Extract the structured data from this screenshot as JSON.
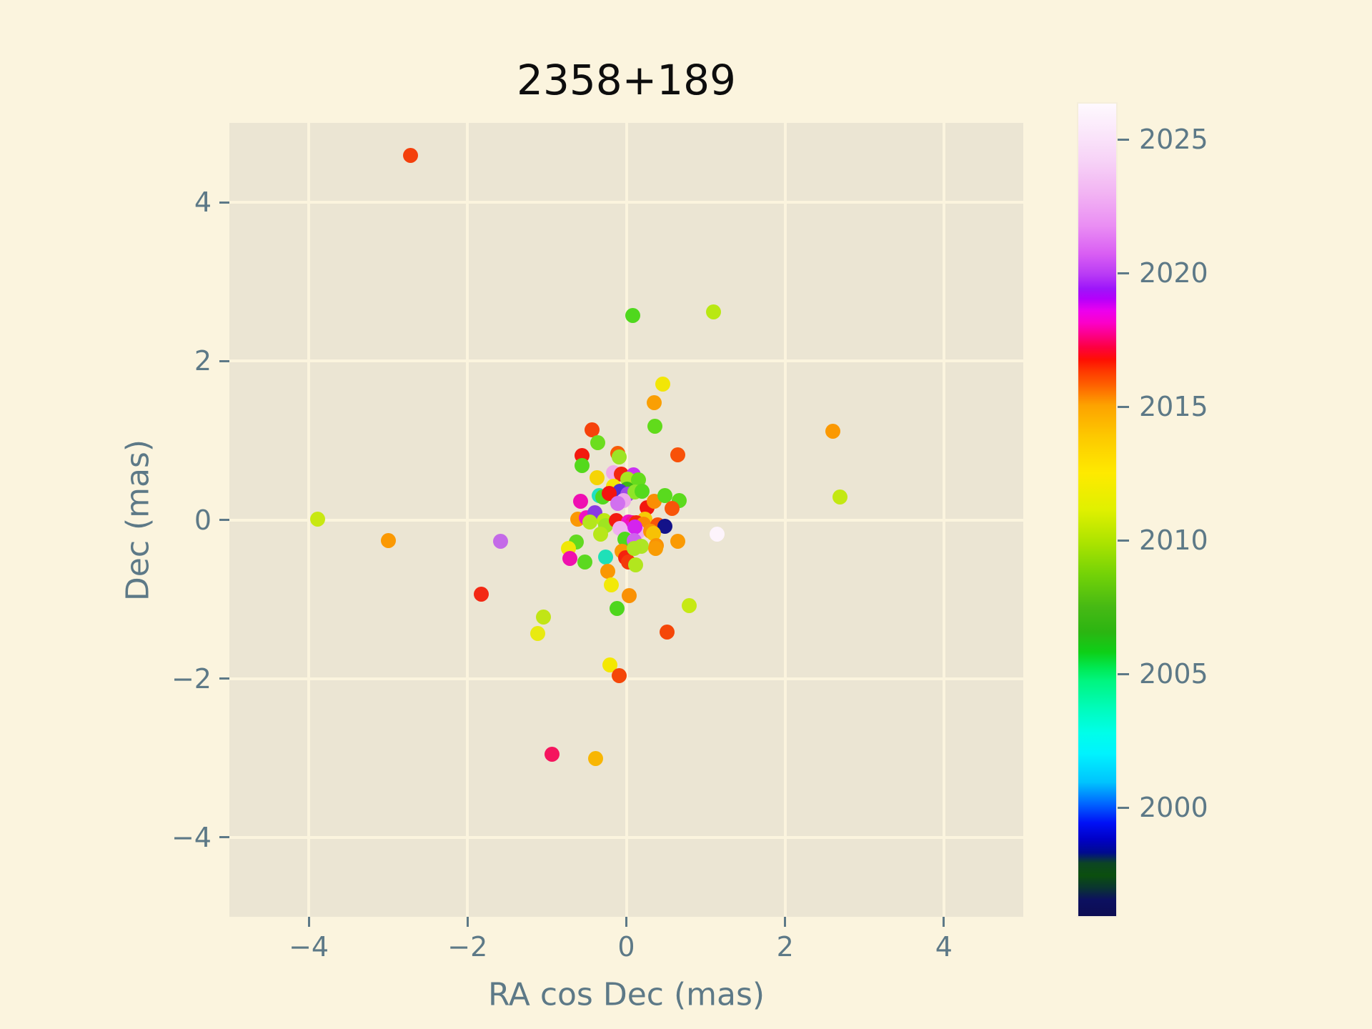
{
  "title": "2358+189",
  "x_axis": {
    "label": "RA cos Dec (mas)",
    "tick_labels": [
      "−4",
      "−2",
      "0",
      "2",
      "4"
    ],
    "tick_values": [
      -4,
      -2,
      0,
      2,
      4
    ]
  },
  "y_axis": {
    "label": "Dec (mas)",
    "tick_labels": [
      "−4",
      "−2",
      "0",
      "2",
      "4"
    ],
    "tick_values": [
      -4,
      -2,
      0,
      2,
      4
    ]
  },
  "colorbar": {
    "tick_labels": [
      "2025",
      "2020",
      "2015",
      "2010",
      "2005",
      "2000"
    ],
    "tick_values": [
      2025,
      2020,
      2015,
      2010,
      2005,
      2000
    ],
    "vmin": 1996.0,
    "vmax": 2026.4,
    "meaning": "epoch year of observation",
    "gradient_top_to_bottom": [
      [
        0.0,
        "#fef9fe"
      ],
      [
        0.03,
        "#fbeafb"
      ],
      [
        0.07,
        "#f7d3f7"
      ],
      [
        0.11,
        "#f2b4f3"
      ],
      [
        0.15,
        "#ea8ef3"
      ],
      [
        0.185,
        "#d95ef3"
      ],
      [
        0.21,
        "#b93bf5"
      ],
      [
        0.228,
        "#9d15fa"
      ],
      [
        0.24,
        "#b400fb"
      ],
      [
        0.255,
        "#ec00ee"
      ],
      [
        0.27,
        "#fb00c8"
      ],
      [
        0.285,
        "#fc0086"
      ],
      [
        0.3,
        "#fd0040"
      ],
      [
        0.315,
        "#fe0f03"
      ],
      [
        0.33,
        "#fe3a00"
      ],
      [
        0.345,
        "#fe5d00"
      ],
      [
        0.371,
        "#fda200"
      ],
      [
        0.41,
        "#fdc900"
      ],
      [
        0.455,
        "#feea00"
      ],
      [
        0.5,
        "#e0f000"
      ],
      [
        0.541,
        "#abe300"
      ],
      [
        0.58,
        "#73d207"
      ],
      [
        0.62,
        "#46b914"
      ],
      [
        0.65,
        "#2cb512"
      ],
      [
        0.675,
        "#0ecf17"
      ],
      [
        0.695,
        "#00e954"
      ],
      [
        0.71,
        "#00f57e"
      ],
      [
        0.745,
        "#00fcbc"
      ],
      [
        0.775,
        "#00feea"
      ],
      [
        0.8,
        "#00f3fe"
      ],
      [
        0.835,
        "#00c4fe"
      ],
      [
        0.862,
        "#0064ff"
      ],
      [
        0.885,
        "#0011f6"
      ],
      [
        0.905,
        "#0000c8"
      ],
      [
        0.922,
        "#000b8e"
      ],
      [
        0.935,
        "#0c4523"
      ],
      [
        0.95,
        "#0b4f0e"
      ],
      [
        0.965,
        "#0a3530"
      ],
      [
        0.98,
        "#0c1060"
      ],
      [
        1.0,
        "#0d0d52"
      ]
    ]
  },
  "colors": {
    "figure_bg": "#fbf4de",
    "plot_bg": "#ebe5d3",
    "grid": "#fbf4de",
    "tick_text": "#5d7987",
    "axis_label_text": "#5d7987",
    "title_text": "#0d0d0d",
    "tick_mark": "#5d7987",
    "colorbar_border": "#f5eedb"
  },
  "chart_data": {
    "type": "scatter",
    "title": "2358+189",
    "xlabel": "RA cos Dec (mas)",
    "ylabel": "Dec (mas)",
    "xlim": [
      -5,
      5
    ],
    "ylim": [
      -5,
      5
    ],
    "grid": true,
    "legend": "none (colorbar encodes epoch year 1996-2026, ticks 2000-2025)",
    "marker_diameter_px": 21,
    "points": [
      {
        "x": -2.72,
        "y": 4.59,
        "color": "#f4400c"
      },
      {
        "x": 0.08,
        "y": 2.57,
        "color": "#4fd81d"
      },
      {
        "x": 1.1,
        "y": 2.62,
        "color": "#b9e812"
      },
      {
        "x": 0.46,
        "y": 1.71,
        "color": "#f2e607"
      },
      {
        "x": 0.35,
        "y": 1.48,
        "color": "#fa9f03"
      },
      {
        "x": 0.36,
        "y": 1.18,
        "color": "#61db1b"
      },
      {
        "x": -0.43,
        "y": 1.13,
        "color": "#f6420b"
      },
      {
        "x": -0.36,
        "y": 0.97,
        "color": "#6cdd1e"
      },
      {
        "x": -0.56,
        "y": 0.81,
        "color": "#f3190e"
      },
      {
        "x": -0.11,
        "y": 0.84,
        "color": "#f85c07"
      },
      {
        "x": -0.09,
        "y": 0.79,
        "color": "#9ce426"
      },
      {
        "x": -0.56,
        "y": 0.68,
        "color": "#54d91c"
      },
      {
        "x": 0.65,
        "y": 0.82,
        "color": "#f85108"
      },
      {
        "x": -0.16,
        "y": 0.59,
        "color": "#f0a9ea"
      },
      {
        "x": -0.06,
        "y": 0.58,
        "color": "#f3240e"
      },
      {
        "x": 0.09,
        "y": 0.57,
        "color": "#cb32f2"
      },
      {
        "x": 0.02,
        "y": 0.51,
        "color": "#a8e522"
      },
      {
        "x": 0.15,
        "y": 0.5,
        "color": "#65dc1d"
      },
      {
        "x": -0.37,
        "y": 0.53,
        "color": "#f5d405"
      },
      {
        "x": -0.16,
        "y": 0.42,
        "color": "#f3e607"
      },
      {
        "x": 0.01,
        "y": 0.39,
        "color": "#3cb717"
      },
      {
        "x": -0.08,
        "y": 0.36,
        "color": "#4f30d2"
      },
      {
        "x": 0.02,
        "y": 0.32,
        "color": "#a04ae8"
      },
      {
        "x": 0.11,
        "y": 0.35,
        "color": "#8ee528"
      },
      {
        "x": 0.2,
        "y": 0.36,
        "color": "#56d91d"
      },
      {
        "x": -0.34,
        "y": 0.31,
        "color": "#21e0c2"
      },
      {
        "x": -0.3,
        "y": 0.29,
        "color": "#52d81e"
      },
      {
        "x": -0.22,
        "y": 0.33,
        "color": "#f3140f"
      },
      {
        "x": -0.04,
        "y": 0.24,
        "color": "#eda6ec"
      },
      {
        "x": -0.11,
        "y": 0.21,
        "color": "#d170ef"
      },
      {
        "x": 0.26,
        "y": 0.15,
        "color": "#f3170e"
      },
      {
        "x": 0.35,
        "y": 0.23,
        "color": "#fa8e04"
      },
      {
        "x": 0.49,
        "y": 0.31,
        "color": "#59da1e"
      },
      {
        "x": 0.67,
        "y": 0.24,
        "color": "#5bda1d"
      },
      {
        "x": 0.58,
        "y": 0.14,
        "color": "#f8550a"
      },
      {
        "x": -0.58,
        "y": 0.23,
        "color": "#ef0fb2"
      },
      {
        "x": 0.23,
        "y": 0.01,
        "color": "#f6ca06"
      },
      {
        "x": -0.61,
        "y": 0.01,
        "color": "#fa9804"
      },
      {
        "x": -0.5,
        "y": 0.03,
        "color": "#f014c0"
      },
      {
        "x": -0.4,
        "y": 0.09,
        "color": "#8a3ae2"
      },
      {
        "x": -0.46,
        "y": -0.03,
        "color": "#b4e61c"
      },
      {
        "x": -0.28,
        "y": -0.01,
        "color": "#bce813"
      },
      {
        "x": -0.26,
        "y": -0.07,
        "color": "#9fe521"
      },
      {
        "x": -0.13,
        "y": -0.01,
        "color": "#f31b10"
      },
      {
        "x": 0.03,
        "y": -0.03,
        "color": "#f214c9"
      },
      {
        "x": 0.08,
        "y": -0.04,
        "color": "#f3129b"
      },
      {
        "x": -0.01,
        "y": -0.1,
        "color": "#f013c4"
      },
      {
        "x": 0.13,
        "y": -0.04,
        "color": "#f4270c"
      },
      {
        "x": 0.22,
        "y": -0.05,
        "color": "#fa8a05"
      },
      {
        "x": 0.4,
        "y": -0.06,
        "color": "#f8540a"
      },
      {
        "x": 0.49,
        "y": -0.08,
        "color": "#131289"
      },
      {
        "x": 1.14,
        "y": -0.18,
        "color": "#fdf4fc"
      },
      {
        "x": -0.08,
        "y": -0.11,
        "color": "#efb0f0"
      },
      {
        "x": 0.06,
        "y": -0.16,
        "color": "#f0b3f2"
      },
      {
        "x": 0.14,
        "y": -0.15,
        "color": "#eeabef"
      },
      {
        "x": 0.11,
        "y": -0.09,
        "color": "#d423ee"
      },
      {
        "x": -0.32,
        "y": -0.18,
        "color": "#b7e71a"
      },
      {
        "x": -0.02,
        "y": -0.24,
        "color": "#50d81e"
      },
      {
        "x": 0.1,
        "y": -0.26,
        "color": "#cf63ee"
      },
      {
        "x": 0.19,
        "y": -0.33,
        "color": "#aee524"
      },
      {
        "x": 0.31,
        "y": -0.14,
        "color": "#fa9305"
      },
      {
        "x": 0.34,
        "y": -0.17,
        "color": "#f7c105"
      },
      {
        "x": 0.38,
        "y": -0.32,
        "color": "#fa9204"
      },
      {
        "x": 0.65,
        "y": -0.27,
        "color": "#fa9a03"
      },
      {
        "x": -0.63,
        "y": -0.28,
        "color": "#62da20"
      },
      {
        "x": -0.73,
        "y": -0.36,
        "color": "#f0e808"
      },
      {
        "x": -0.71,
        "y": -0.49,
        "color": "#ef11ae"
      },
      {
        "x": -0.52,
        "y": -0.53,
        "color": "#5bd91f"
      },
      {
        "x": -0.26,
        "y": -0.47,
        "color": "#1fe0b8"
      },
      {
        "x": -0.05,
        "y": -0.4,
        "color": "#fa9a04"
      },
      {
        "x": -0.01,
        "y": -0.48,
        "color": "#f5220d"
      },
      {
        "x": 0.03,
        "y": -0.53,
        "color": "#f43a0b"
      },
      {
        "x": 0.1,
        "y": -0.36,
        "color": "#ace523"
      },
      {
        "x": 0.12,
        "y": -0.57,
        "color": "#b2e61e"
      },
      {
        "x": 0.37,
        "y": -0.36,
        "color": "#f99c04"
      },
      {
        "x": -0.23,
        "y": -0.65,
        "color": "#fa9703"
      },
      {
        "x": -0.19,
        "y": -0.82,
        "color": "#f2e909"
      },
      {
        "x": 0.04,
        "y": -0.95,
        "color": "#fa9104"
      },
      {
        "x": -1.58,
        "y": -0.27,
        "color": "#c46ae8"
      },
      {
        "x": -1.83,
        "y": -0.94,
        "color": "#f32813"
      },
      {
        "x": -3.89,
        "y": 0.01,
        "color": "#c8e812"
      },
      {
        "x": -3.0,
        "y": -0.26,
        "color": "#fb9902"
      },
      {
        "x": 2.6,
        "y": 1.12,
        "color": "#fb9902"
      },
      {
        "x": 2.69,
        "y": 0.29,
        "color": "#c3e812"
      },
      {
        "x": -0.12,
        "y": -1.12,
        "color": "#4ed61c"
      },
      {
        "x": -1.04,
        "y": -1.22,
        "color": "#c1e515"
      },
      {
        "x": -1.12,
        "y": -1.43,
        "color": "#e8ea11"
      },
      {
        "x": 0.51,
        "y": -1.41,
        "color": "#f54708"
      },
      {
        "x": 0.79,
        "y": -1.08,
        "color": "#c6e914"
      },
      {
        "x": -0.21,
        "y": -1.83,
        "color": "#f4e800"
      },
      {
        "x": -0.09,
        "y": -1.96,
        "color": "#f54708"
      },
      {
        "x": -0.94,
        "y": -2.95,
        "color": "#f5155e"
      },
      {
        "x": -0.39,
        "y": -3.01,
        "color": "#f8b603"
      }
    ]
  }
}
